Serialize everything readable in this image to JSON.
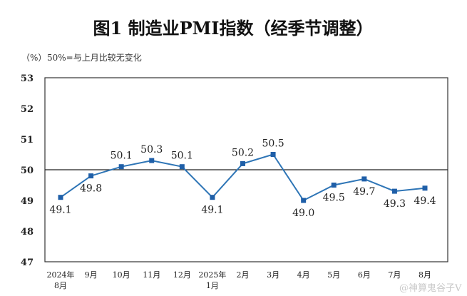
{
  "chart_data": {
    "type": "line",
    "title": "图1  制造业PMI指数（经季节调整）",
    "unit_label": "（%）",
    "note": "50%=与上月比较无变化",
    "categories": [
      [
        "2024年",
        "8月"
      ],
      [
        "9月"
      ],
      [
        "10月"
      ],
      [
        "11月"
      ],
      [
        "12月"
      ],
      [
        "2025年",
        "1月"
      ],
      [
        "2月"
      ],
      [
        "3月"
      ],
      [
        "4月"
      ],
      [
        "5月"
      ],
      [
        "6月"
      ],
      [
        "7月"
      ],
      [
        "8月"
      ]
    ],
    "series": [
      {
        "values": [
          49.1,
          49.8,
          50.1,
          50.3,
          50.1,
          49.1,
          50.2,
          50.5,
          49.0,
          49.5,
          49.7,
          49.3,
          49.4
        ]
      }
    ],
    "data_labels": [
      "49.1",
      "49.8",
      "50.1",
      "50.3",
      "50.1",
      "49.1",
      "50.2",
      "50.5",
      "49.0",
      "49.5",
      "49.7",
      "49.3",
      "49.4"
    ],
    "label_position": [
      "below",
      "below",
      "above",
      "above",
      "above",
      "below",
      "above",
      "above",
      "below",
      "below",
      "below",
      "below",
      "below"
    ],
    "ylim": [
      47,
      53
    ],
    "yticks": [
      "47",
      "48",
      "49",
      "50",
      "51",
      "52",
      "53"
    ],
    "reference_line": 50,
    "grid": false,
    "line_color": "#2e75b6",
    "marker_color": "#1f5fa8",
    "watermark": "@神算鬼谷子V"
  }
}
